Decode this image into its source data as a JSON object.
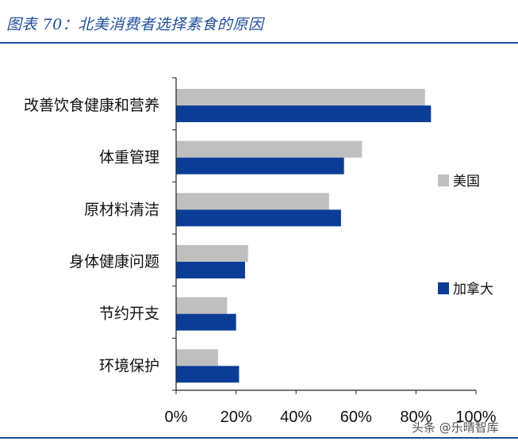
{
  "title": "图表 70：北美消费者选择素食的原因",
  "watermark": "头条 @乐晴智库",
  "colors": {
    "usa": "#bfbfbf",
    "canada": "#0c3d96",
    "title": "#1f4e9c"
  },
  "chart_data": {
    "type": "bar",
    "orientation": "horizontal",
    "categories": [
      "改善饮食健康和营养",
      "体重管理",
      "原材料清洁",
      "身体健康问题",
      "节约开支",
      "环境保护"
    ],
    "series": [
      {
        "name": "美国",
        "values": [
          83,
          62,
          51,
          24,
          17,
          14
        ]
      },
      {
        "name": "加拿大",
        "values": [
          85,
          56,
          55,
          23,
          20,
          21
        ]
      }
    ],
    "xlim": [
      0,
      100
    ],
    "xticks": [
      "0%",
      "20%",
      "40%",
      "60%",
      "80%",
      "100%"
    ],
    "grid": false,
    "legend_position": "right"
  }
}
